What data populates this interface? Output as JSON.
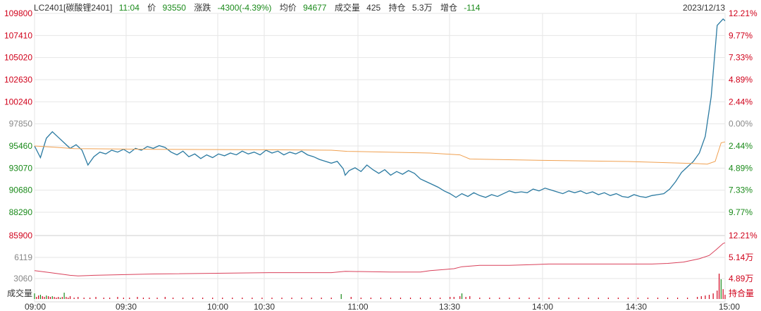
{
  "header": {
    "symbol": "LC2401[碳酸锂2401]",
    "time": "11:04",
    "price_label": "价",
    "price": "93550",
    "change_label": "涨跌",
    "change": "-4300(-4.39%)",
    "avg_label": "均价",
    "avg": "94677",
    "volume_label": "成交量",
    "volume": "425",
    "oi_label": "持仓",
    "oi": "5.3万",
    "oi_change_label": "增仓",
    "oi_change": "-114",
    "date": "2023/12/13"
  },
  "colors": {
    "up": "#d0021b",
    "down": "#1a8a1a",
    "neutral": "#888888",
    "price_line": "#2b7aa1",
    "avg_line": "#f0a050",
    "oi_line": "#d9405a",
    "grid": "#e6e6e6"
  },
  "chart_data": {
    "type": "line",
    "price_axis": {
      "ticks": [
        "109800",
        "107410",
        "105020",
        "102630",
        "100240",
        "97850",
        "95460",
        "93070",
        "90680",
        "88290"
      ],
      "tick_colors": [
        "up",
        "up",
        "up",
        "up",
        "up",
        "neutral",
        "down",
        "down",
        "down",
        "down"
      ],
      "pct_ticks": [
        "12.21%",
        "9.77%",
        "7.33%",
        "4.89%",
        "2.44%",
        "0.00%",
        "2.44%",
        "4.89%",
        "7.33%",
        "9.77%"
      ],
      "range": [
        85900,
        109800
      ]
    },
    "oi_axis": {
      "left_ticks": [
        "85900",
        "6119",
        "3060"
      ],
      "left_tick_colors": [
        "up",
        "neutral",
        "neutral"
      ],
      "right_ticks": [
        "12.21%",
        "5.14万",
        "4.89万"
      ],
      "right_tick_colors": [
        "up",
        "up",
        "up"
      ],
      "volume_label": "成交量",
      "oi_label": "持合量"
    },
    "x_ticks": [
      "09:00",
      "09:30",
      "10:00",
      "10:30",
      "11:00",
      "13:30",
      "14:00",
      "14:30",
      "15:00"
    ],
    "series": [
      {
        "key": "price",
        "points": [
          [
            0,
            95460
          ],
          [
            3,
            94200
          ],
          [
            6,
            96300
          ],
          [
            9,
            97000
          ],
          [
            12,
            96400
          ],
          [
            15,
            95800
          ],
          [
            18,
            95200
          ],
          [
            21,
            95600
          ],
          [
            24,
            95000
          ],
          [
            27,
            93400
          ],
          [
            30,
            94300
          ],
          [
            33,
            94800
          ],
          [
            36,
            94600
          ],
          [
            39,
            95000
          ],
          [
            42,
            94800
          ],
          [
            45,
            95100
          ],
          [
            48,
            94700
          ],
          [
            51,
            95200
          ],
          [
            54,
            95000
          ],
          [
            57,
            95400
          ],
          [
            60,
            95200
          ],
          [
            63,
            95500
          ],
          [
            66,
            95300
          ],
          [
            69,
            94800
          ],
          [
            72,
            94500
          ],
          [
            75,
            94900
          ],
          [
            78,
            94300
          ],
          [
            81,
            94600
          ],
          [
            84,
            94100
          ],
          [
            87,
            94500
          ],
          [
            90,
            94200
          ],
          [
            93,
            94600
          ],
          [
            96,
            94400
          ],
          [
            99,
            94700
          ],
          [
            102,
            94500
          ],
          [
            105,
            94900
          ],
          [
            108,
            94600
          ],
          [
            111,
            94800
          ],
          [
            114,
            94500
          ],
          [
            117,
            95000
          ],
          [
            120,
            94700
          ],
          [
            123,
            94900
          ],
          [
            126,
            94500
          ],
          [
            129,
            94800
          ],
          [
            132,
            94600
          ],
          [
            135,
            94900
          ],
          [
            138,
            94500
          ],
          [
            141,
            94300
          ],
          [
            144,
            94000
          ],
          [
            147,
            93800
          ],
          [
            150,
            93600
          ],
          [
            153,
            93800
          ],
          [
            156,
            93000
          ],
          [
            157,
            92300
          ],
          [
            159,
            92800
          ],
          [
            162,
            93100
          ],
          [
            165,
            92700
          ],
          [
            168,
            93400
          ],
          [
            171,
            92900
          ],
          [
            174,
            92500
          ],
          [
            177,
            92900
          ],
          [
            180,
            92300
          ],
          [
            183,
            92700
          ],
          [
            186,
            92400
          ],
          [
            189,
            92800
          ],
          [
            192,
            92500
          ],
          [
            195,
            91900
          ],
          [
            198,
            91600
          ],
          [
            201,
            91300
          ],
          [
            204,
            91000
          ],
          [
            207,
            90600
          ],
          [
            210,
            90300
          ],
          [
            213,
            89900
          ],
          [
            216,
            90300
          ],
          [
            219,
            90000
          ],
          [
            222,
            90400
          ],
          [
            225,
            90100
          ],
          [
            228,
            89900
          ],
          [
            231,
            90200
          ],
          [
            234,
            90000
          ],
          [
            237,
            90300
          ],
          [
            240,
            90600
          ],
          [
            243,
            90400
          ],
          [
            246,
            90500
          ],
          [
            249,
            90400
          ],
          [
            252,
            90800
          ],
          [
            255,
            90600
          ],
          [
            258,
            90900
          ],
          [
            261,
            90700
          ],
          [
            264,
            90500
          ],
          [
            267,
            90300
          ],
          [
            270,
            90600
          ],
          [
            273,
            90400
          ],
          [
            276,
            90600
          ],
          [
            279,
            90300
          ],
          [
            282,
            90500
          ],
          [
            285,
            90200
          ],
          [
            288,
            90400
          ],
          [
            291,
            90100
          ],
          [
            294,
            90300
          ],
          [
            297,
            90000
          ],
          [
            300,
            89900
          ],
          [
            303,
            90200
          ],
          [
            306,
            90000
          ],
          [
            309,
            89900
          ],
          [
            312,
            90100
          ],
          [
            315,
            90200
          ],
          [
            318,
            90300
          ],
          [
            321,
            90800
          ],
          [
            324,
            91600
          ],
          [
            327,
            92600
          ],
          [
            330,
            93200
          ],
          [
            333,
            93800
          ],
          [
            336,
            94700
          ],
          [
            339,
            96500
          ],
          [
            342,
            100800
          ],
          [
            345,
            108500
          ],
          [
            348,
            109200
          ],
          [
            349,
            109000
          ]
        ]
      },
      {
        "key": "avg",
        "points": [
          [
            0,
            95460
          ],
          [
            10,
            95330
          ],
          [
            20,
            95180
          ],
          [
            60,
            95100
          ],
          [
            120,
            95050
          ],
          [
            150,
            95000
          ],
          [
            158,
            94880
          ],
          [
            200,
            94700
          ],
          [
            215,
            94500
          ],
          [
            220,
            94050
          ],
          [
            260,
            93900
          ],
          [
            300,
            93780
          ],
          [
            335,
            93550
          ],
          [
            340,
            93500
          ],
          [
            344,
            93800
          ],
          [
            347,
            95800
          ],
          [
            349,
            95900
          ]
        ]
      },
      {
        "key": "oi",
        "points": [
          [
            0,
            47
          ],
          [
            8,
            44
          ],
          [
            18,
            40
          ],
          [
            22,
            39
          ],
          [
            30,
            40
          ],
          [
            60,
            42
          ],
          [
            120,
            44
          ],
          [
            150,
            44
          ],
          [
            157,
            46
          ],
          [
            180,
            45
          ],
          [
            195,
            45
          ],
          [
            200,
            47
          ],
          [
            212,
            50
          ],
          [
            216,
            53
          ],
          [
            225,
            55
          ],
          [
            240,
            55
          ],
          [
            260,
            57
          ],
          [
            280,
            57
          ],
          [
            300,
            57
          ],
          [
            312,
            57
          ],
          [
            320,
            58
          ],
          [
            328,
            60
          ],
          [
            336,
            65
          ],
          [
            341,
            70
          ],
          [
            345,
            80
          ],
          [
            348,
            88
          ],
          [
            349,
            89
          ]
        ]
      }
    ],
    "volume": [
      [
        0,
        8,
        "down"
      ],
      [
        1,
        3,
        "up"
      ],
      [
        2,
        5,
        "up"
      ],
      [
        3,
        6,
        "down"
      ],
      [
        4,
        4,
        "up"
      ],
      [
        5,
        3,
        "up"
      ],
      [
        6,
        5,
        "down"
      ],
      [
        7,
        4,
        "up"
      ],
      [
        8,
        3,
        "up"
      ],
      [
        9,
        4,
        "down"
      ],
      [
        10,
        3,
        "up"
      ],
      [
        11,
        2,
        "up"
      ],
      [
        12,
        3,
        "up"
      ],
      [
        13,
        2,
        "down"
      ],
      [
        14,
        3,
        "up"
      ],
      [
        15,
        9,
        "down"
      ],
      [
        16,
        3,
        "up"
      ],
      [
        17,
        2,
        "up"
      ],
      [
        18,
        4,
        "up"
      ],
      [
        20,
        2,
        "up"
      ],
      [
        22,
        3,
        "up"
      ],
      [
        25,
        2,
        "up"
      ],
      [
        28,
        2,
        "up"
      ],
      [
        31,
        3,
        "up"
      ],
      [
        35,
        2,
        "up"
      ],
      [
        38,
        2,
        "up"
      ],
      [
        42,
        3,
        "up"
      ],
      [
        45,
        2,
        "up"
      ],
      [
        48,
        2,
        "up"
      ],
      [
        52,
        3,
        "up"
      ],
      [
        55,
        2,
        "up"
      ],
      [
        58,
        2,
        "up"
      ],
      [
        62,
        2,
        "up"
      ],
      [
        66,
        3,
        "up"
      ],
      [
        70,
        2,
        "up"
      ],
      [
        75,
        2,
        "up"
      ],
      [
        80,
        2,
        "up"
      ],
      [
        85,
        2,
        "up"
      ],
      [
        90,
        2,
        "up"
      ],
      [
        95,
        2,
        "up"
      ],
      [
        100,
        2,
        "up"
      ],
      [
        105,
        2,
        "up"
      ],
      [
        110,
        2,
        "up"
      ],
      [
        115,
        2,
        "up"
      ],
      [
        120,
        2,
        "up"
      ],
      [
        125,
        2,
        "up"
      ],
      [
        130,
        2,
        "up"
      ],
      [
        135,
        2,
        "up"
      ],
      [
        140,
        2,
        "up"
      ],
      [
        145,
        2,
        "up"
      ],
      [
        150,
        2,
        "up"
      ],
      [
        155,
        7,
        "down"
      ],
      [
        160,
        3,
        "up"
      ],
      [
        165,
        2,
        "up"
      ],
      [
        170,
        2,
        "up"
      ],
      [
        175,
        2,
        "up"
      ],
      [
        180,
        2,
        "up"
      ],
      [
        185,
        2,
        "up"
      ],
      [
        190,
        2,
        "up"
      ],
      [
        195,
        2,
        "up"
      ],
      [
        200,
        2,
        "up"
      ],
      [
        205,
        2,
        "up"
      ],
      [
        210,
        3,
        "up"
      ],
      [
        212,
        3,
        "up"
      ],
      [
        215,
        4,
        "up"
      ],
      [
        216,
        8,
        "down"
      ],
      [
        218,
        3,
        "up"
      ],
      [
        220,
        4,
        "up"
      ],
      [
        225,
        2,
        "up"
      ],
      [
        230,
        2,
        "up"
      ],
      [
        235,
        2,
        "up"
      ],
      [
        240,
        2,
        "up"
      ],
      [
        245,
        2,
        "up"
      ],
      [
        250,
        2,
        "up"
      ],
      [
        255,
        2,
        "up"
      ],
      [
        260,
        2,
        "up"
      ],
      [
        265,
        2,
        "up"
      ],
      [
        270,
        2,
        "up"
      ],
      [
        275,
        2,
        "up"
      ],
      [
        280,
        2,
        "up"
      ],
      [
        285,
        2,
        "up"
      ],
      [
        290,
        2,
        "up"
      ],
      [
        295,
        2,
        "up"
      ],
      [
        300,
        2,
        "up"
      ],
      [
        305,
        2,
        "up"
      ],
      [
        310,
        2,
        "up"
      ],
      [
        315,
        2,
        "up"
      ],
      [
        320,
        2,
        "up"
      ],
      [
        325,
        2,
        "up"
      ],
      [
        330,
        2,
        "up"
      ],
      [
        335,
        3,
        "up"
      ],
      [
        337,
        4,
        "up"
      ],
      [
        339,
        5,
        "up"
      ],
      [
        341,
        6,
        "up"
      ],
      [
        343,
        8,
        "up"
      ],
      [
        345,
        12,
        "up"
      ],
      [
        346,
        36,
        "up"
      ],
      [
        347,
        28,
        "down"
      ],
      [
        348,
        14,
        "up"
      ],
      [
        349,
        6,
        "up"
      ]
    ]
  }
}
